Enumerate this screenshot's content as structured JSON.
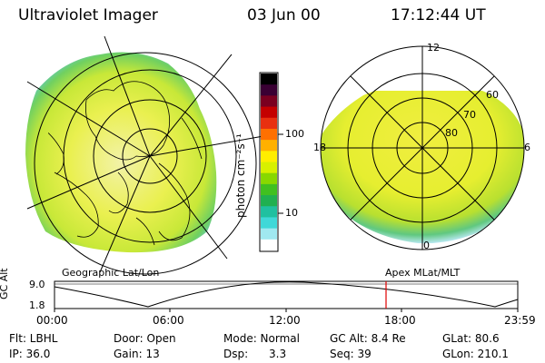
{
  "header": {
    "instrument": "Ultraviolet Imager",
    "date": "03 Jun 00",
    "time": "17:12:44 UT"
  },
  "colorbar": {
    "label": "photon cm⁻²s⁻¹",
    "ticks": [
      "100",
      "10"
    ],
    "colors": [
      "#000000",
      "#3a0033",
      "#7a0020",
      "#c40000",
      "#e83010",
      "#ff7000",
      "#ffb000",
      "#ffee00",
      "#d8f000",
      "#88d800",
      "#40c020",
      "#20b050",
      "#20c0a0",
      "#40d8d8",
      "#a0e8f0",
      "#ffffff"
    ]
  },
  "left_image": {
    "caption": "Geographic Lat/Lon"
  },
  "right_image": {
    "caption": "Apex MLat/MLT",
    "mlt_labels": [
      "12",
      "18",
      "6",
      "0"
    ],
    "lat_labels": [
      "60",
      "70",
      "80"
    ]
  },
  "orbit_plot": {
    "ylabel": "GC Alt",
    "yticks": [
      "9.0",
      "1.8"
    ],
    "xticks": [
      "00:00",
      "06:00",
      "12:00",
      "18:00",
      "23:59"
    ],
    "current_time_marker": "17:12"
  },
  "info": {
    "filter": "Flt: LBHL",
    "ip": "IP: 36.0",
    "door": "Door: Open",
    "gain": "Gain: 13",
    "mode": "Mode: Normal",
    "dsp_label": "Dsp:",
    "dsp_value": "3.3",
    "gc_alt": "GC Alt: 8.4 Re",
    "seq": "Seq: 39",
    "glat": "GLat: 80.6",
    "glon": "GLon: 210.1"
  }
}
